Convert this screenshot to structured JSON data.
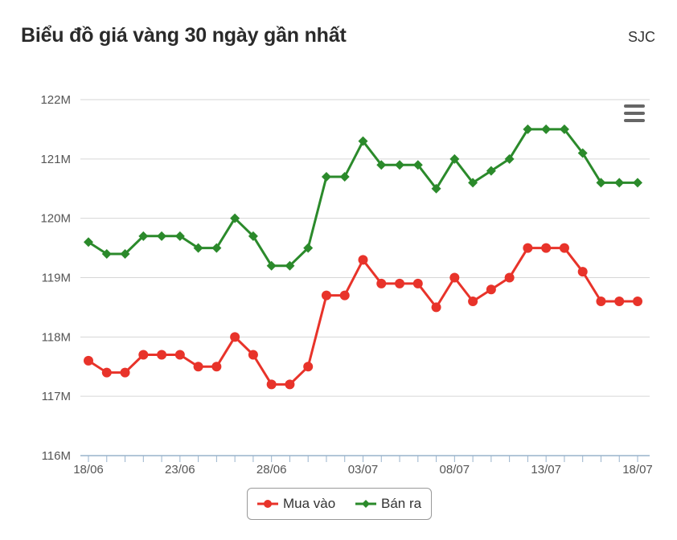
{
  "header": {
    "title": "Biểu đồ giá vàng 30 ngày gần nhất",
    "brand": "SJC"
  },
  "chart_data": {
    "type": "line",
    "title": "",
    "xlabel": "",
    "ylabel": "",
    "ylim": [
      116,
      122
    ],
    "y_tick_values": [
      116,
      117,
      118,
      119,
      120,
      121,
      122
    ],
    "y_tick_labels": [
      "116M",
      "117M",
      "118M",
      "119M",
      "120M",
      "121M",
      "122M"
    ],
    "x_tick_labels": [
      "18/06",
      "23/06",
      "28/06",
      "03/07",
      "08/07",
      "13/07",
      "18/07"
    ],
    "x_tick_indices": [
      0,
      5,
      10,
      15,
      20,
      25,
      30
    ],
    "grid": true,
    "legend_position": "bottom-center",
    "categories": [
      "18/06",
      "19/06",
      "20/06",
      "21/06",
      "22/06",
      "23/06",
      "24/06",
      "25/06",
      "26/06",
      "27/06",
      "28/06",
      "29/06",
      "30/06",
      "01/07",
      "02/07",
      "03/07",
      "04/07",
      "05/07",
      "06/07",
      "07/07",
      "08/07",
      "09/07",
      "10/07",
      "11/07",
      "12/07",
      "13/07",
      "14/07",
      "15/07",
      "16/07",
      "17/07",
      "18/07"
    ],
    "series": [
      {
        "name": "Mua vào",
        "color": "#e8332a",
        "values": [
          117.6,
          117.4,
          117.4,
          117.7,
          117.7,
          117.7,
          117.5,
          117.5,
          118.0,
          117.7,
          117.2,
          117.2,
          117.5,
          118.7,
          118.7,
          119.3,
          118.9,
          118.9,
          118.9,
          118.5,
          119.0,
          118.6,
          118.8,
          119.0,
          119.5,
          119.5,
          119.5,
          119.1,
          118.6,
          118.6,
          118.6
        ]
      },
      {
        "name": "Bán ra",
        "color": "#2b8a2b",
        "values": [
          119.6,
          119.4,
          119.4,
          119.7,
          119.7,
          119.7,
          119.5,
          119.5,
          120.0,
          119.7,
          119.2,
          119.2,
          119.5,
          120.7,
          120.7,
          121.3,
          120.9,
          120.9,
          120.9,
          120.5,
          121.0,
          120.6,
          120.8,
          121.0,
          121.5,
          121.5,
          121.5,
          121.1,
          120.6,
          120.6,
          120.6
        ]
      }
    ]
  }
}
